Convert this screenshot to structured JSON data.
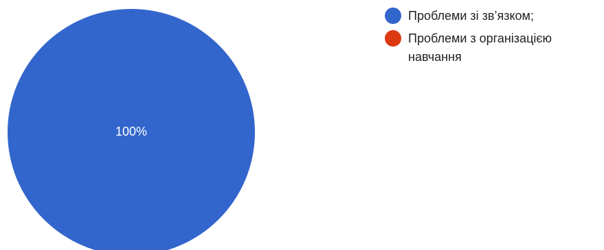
{
  "chart_data": {
    "type": "pie",
    "series": [
      {
        "label": "Проблеми зі зв’язком;",
        "value": 100,
        "color": "#3366cc"
      },
      {
        "label": "Проблеми з організацією навчання",
        "value": 0,
        "color": "#dc3912"
      }
    ],
    "data_labels": [
      "100%"
    ],
    "legend_position": "right"
  }
}
